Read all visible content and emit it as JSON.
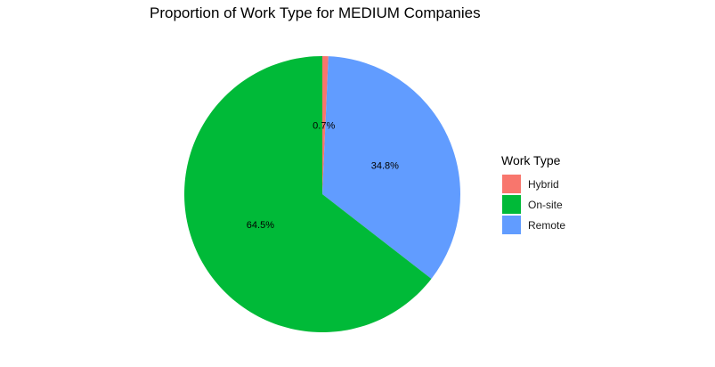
{
  "chart_data": {
    "type": "pie",
    "title": "Proportion of Work Type for MEDIUM Companies",
    "legend_title": "Work Type",
    "legend_position": "right",
    "start": "top",
    "direction": "clockwise",
    "slices": [
      {
        "label": "Hybrid",
        "value": 0.7,
        "label_text": "0.7%",
        "color": "#F8766D"
      },
      {
        "label": "Remote",
        "value": 34.8,
        "label_text": "34.8%",
        "color": "#619CFF"
      },
      {
        "label": "On-site",
        "value": 64.5,
        "label_text": "64.5%",
        "color": "#00BA38"
      }
    ],
    "legend": [
      {
        "label": "Hybrid",
        "color": "#F8766D"
      },
      {
        "label": "On-site",
        "color": "#00BA38"
      },
      {
        "label": "Remote",
        "color": "#619CFF"
      }
    ]
  }
}
